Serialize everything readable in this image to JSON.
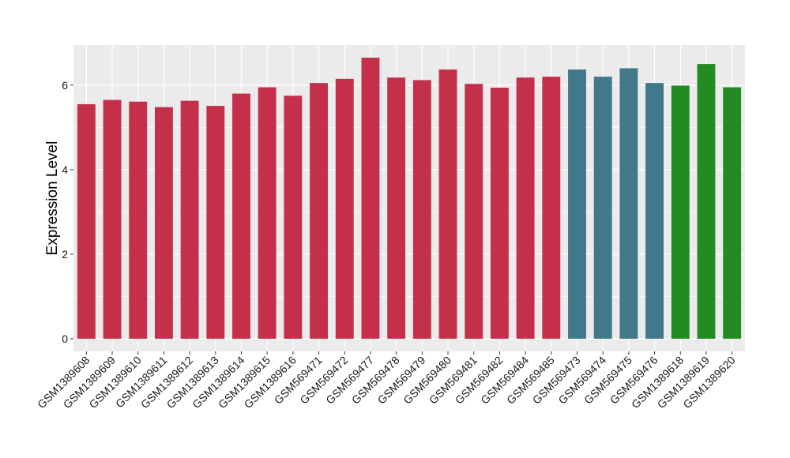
{
  "chart_data": {
    "type": "bar",
    "title": "",
    "xlabel": "",
    "ylabel": "Expression Level",
    "ylim": [
      -0.3,
      6.95
    ],
    "yticks": [
      0,
      2,
      4,
      6
    ],
    "grid": true,
    "legend": "none",
    "background": "#EBEBEB",
    "categories": [
      "GSM1389608",
      "GSM1389609",
      "GSM1389610",
      "GSM1389611",
      "GSM1389612",
      "GSM1389613",
      "GSM1389614",
      "GSM1389615",
      "GSM1389616",
      "GSM569471",
      "GSM569472",
      "GSM569477",
      "GSM569478",
      "GSM569479",
      "GSM569480",
      "GSM569481",
      "GSM569482",
      "GSM569484",
      "GSM569485",
      "GSM569473",
      "GSM569474",
      "GSM569475",
      "GSM569476",
      "GSM1389618",
      "GSM1389619",
      "GSM1389620"
    ],
    "values": [
      5.55,
      5.65,
      5.61,
      5.48,
      5.63,
      5.51,
      5.8,
      5.95,
      5.75,
      6.05,
      6.15,
      6.65,
      6.18,
      6.12,
      6.37,
      6.03,
      5.94,
      6.18,
      6.2,
      6.37,
      6.2,
      6.4,
      6.05,
      5.99,
      6.5,
      5.95
    ],
    "colors": [
      "#C4304A",
      "#C4304A",
      "#C4304A",
      "#C4304A",
      "#C4304A",
      "#C4304A",
      "#C4304A",
      "#C4304A",
      "#C4304A",
      "#C4304A",
      "#C4304A",
      "#C4304A",
      "#C4304A",
      "#C4304A",
      "#C4304A",
      "#C4304A",
      "#C4304A",
      "#C4304A",
      "#C4304A",
      "#41788A",
      "#41788A",
      "#41788A",
      "#41788A",
      "#238B23",
      "#238B23",
      "#238B23"
    ]
  }
}
